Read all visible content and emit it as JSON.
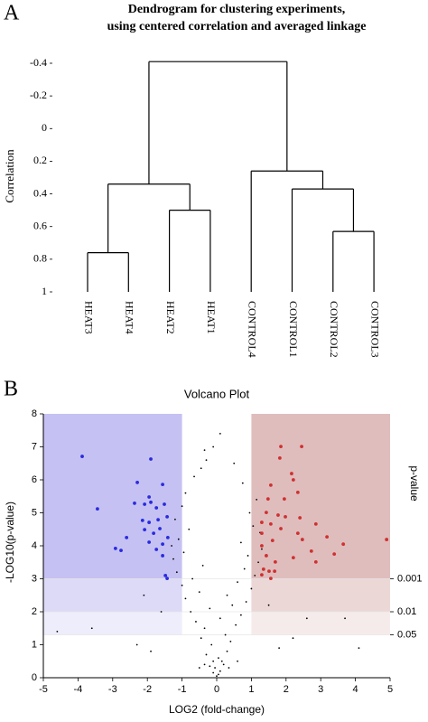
{
  "chart_data": [
    {
      "type": "dendrogram",
      "panel_label": "A",
      "title": [
        "Dendrogram for clustering experiments,",
        "using centered correlation and averaged linkage"
      ],
      "y_label": "Correlation",
      "ylim": [
        -0.4,
        1
      ],
      "y_inverted": true,
      "yticks": [
        -0.4,
        -0.2,
        0,
        0.2,
        0.4,
        0.6,
        0.8,
        1
      ],
      "color": "#000000",
      "tree": {
        "height": -0.41,
        "children": [
          {
            "height": 0.34,
            "children": [
              {
                "height": 0.76,
                "children": [
                  "HEAT3",
                  "HEAT4"
                ]
              },
              {
                "height": 0.5,
                "children": [
                  "HEAT2",
                  "HEAT1"
                ]
              }
            ]
          },
          {
            "height": 0.26,
            "children": [
              "CONTROL4",
              {
                "height": 0.37,
                "children": [
                  "CONTROL1",
                  {
                    "height": 0.63,
                    "children": [
                      "CONTROL2",
                      "CONTROL3"
                    ]
                  }
                ]
              }
            ]
          }
        ]
      }
    },
    {
      "type": "scatter",
      "panel_label": "B",
      "title": "Volcano Plot",
      "x_label": "LOG2 (fold-change)",
      "y_label": "-LOG10(p-value)",
      "y2_label": "p-value",
      "xlim": [
        -5,
        5
      ],
      "xticks": [
        -5,
        -4,
        -3,
        -2,
        -1,
        0,
        1,
        2,
        3,
        4,
        5
      ],
      "ylim": [
        0,
        8
      ],
      "yticks": [
        0,
        1,
        2,
        3,
        4,
        5,
        6,
        7,
        8
      ],
      "y2lim": [
        1,
        1e-08
      ],
      "y2_log": true,
      "y2ticks": [
        0.001,
        0.01,
        0.05
      ],
      "shaded_regions": [
        {
          "xlim": [
            -5,
            -1
          ],
          "color": "#8c84e6"
        },
        {
          "xlim": [
            1,
            5
          ],
          "color": "#c07b7b"
        }
      ],
      "series": [
        {
          "color": "#000000",
          "x": [
            0,
            0.1,
            -0.1,
            0.2,
            -0.2,
            0.05,
            -0.3,
            0.3,
            -0.15,
            0.4,
            -0.45,
            0.25,
            -0.35,
            0.55,
            -0.6,
            0.1,
            0.7,
            -0.75,
            -0.2,
            0.45,
            0.85,
            -0.9,
            0.3,
            -0.5,
            1.0,
            -1.0,
            0.6,
            -0.7,
            1.1,
            -1.15,
            0.8,
            -0.4,
            1.2,
            -1.25,
            0.9,
            -0.95,
            1.3,
            -1.3,
            0.7,
            -1.1,
            1.25,
            -0.8,
            1.05,
            -1.2,
            0.95,
            -1.0,
            1.15,
            -0.9,
            0.75,
            -0.65,
            -0.45,
            0.5,
            -0.35,
            -0.1,
            0.1,
            -0.3,
            1.5,
            -1.6,
            2.2,
            -2.3,
            3.7,
            -3.6,
            2.6,
            -2.1,
            1.8,
            -1.9,
            0.6,
            -0.5,
            4.1,
            -4.6,
            0.05,
            -0.05,
            0.15,
            -0.1,
            0.35,
            -0.35
          ],
          "values": [
            0.05,
            0.2,
            0.15,
            0.4,
            0.35,
            0.6,
            0.7,
            0.8,
            1.0,
            1.1,
            1.2,
            1.3,
            1.5,
            1.6,
            1.7,
            1.8,
            1.9,
            2.0,
            2.1,
            2.2,
            2.3,
            2.4,
            2.5,
            2.6,
            2.7,
            2.8,
            2.9,
            3.0,
            3.1,
            3.2,
            3.3,
            3.4,
            3.5,
            3.6,
            3.7,
            3.8,
            3.9,
            4.0,
            4.1,
            4.2,
            4.4,
            4.5,
            4.6,
            4.8,
            5.0,
            5.2,
            5.4,
            5.6,
            5.9,
            6.1,
            6.35,
            6.5,
            6.9,
            7.0,
            7.4,
            6.6,
            2.2,
            2.0,
            1.2,
            1.0,
            1.8,
            1.5,
            1.8,
            2.5,
            0.9,
            0.8,
            0.5,
            0.3,
            0.9,
            1.4,
            0.1,
            0.3,
            0.5,
            0.5,
            0.3,
            0.4
          ]
        },
        {
          "color": "#2a2ae0",
          "x": [
            -3.88,
            -1.9,
            -2.29,
            -1.56,
            -1.95,
            -3.44,
            -2.37,
            -2.08,
            -1.9,
            -1.74,
            -1.51,
            -2.14,
            -1.95,
            -1.69,
            -1.43,
            -2.08,
            -1.82,
            -1.64,
            -2.6,
            -1.95,
            -1.56,
            -1.41,
            -2.92,
            -2.76,
            -1.74,
            -1.56,
            -1.48,
            -1.43
          ],
          "values": [
            6.71,
            6.63,
            5.92,
            5.86,
            5.48,
            5.12,
            5.29,
            5.26,
            5.32,
            5.15,
            5.26,
            4.77,
            4.71,
            4.79,
            4.88,
            4.49,
            4.38,
            4.52,
            4.25,
            4.11,
            4.05,
            4.25,
            3.92,
            3.86,
            3.89,
            3.7,
            3.1,
            3.01
          ]
        },
        {
          "color": "#d03030",
          "x": [
            1.85,
            2.45,
            1.82,
            2.16,
            2.21,
            1.56,
            2.34,
            1.48,
            1.95,
            1.43,
            1.77,
            1.98,
            2.4,
            1.3,
            1.56,
            1.85,
            2.86,
            1.3,
            2.34,
            3.18,
            2.47,
            4.9,
            1.61,
            3.65,
            1.3,
            2.73,
            3.39,
            1.43,
            2.21,
            1.69,
            1.35,
            1.51,
            1.67,
            1.3,
            1.56,
            2.86
          ],
          "values": [
            7.01,
            7.01,
            6.66,
            6.19,
            6.0,
            5.84,
            5.62,
            5.42,
            5.42,
            5.01,
            4.93,
            4.88,
            4.85,
            4.71,
            4.66,
            4.52,
            4.66,
            4.38,
            4.38,
            4.27,
            4.19,
            4.19,
            4.16,
            4.05,
            4.0,
            3.84,
            3.75,
            3.7,
            3.64,
            3.51,
            3.29,
            3.23,
            3.23,
            3.12,
            3.01,
            3.51
          ]
        }
      ]
    }
  ]
}
